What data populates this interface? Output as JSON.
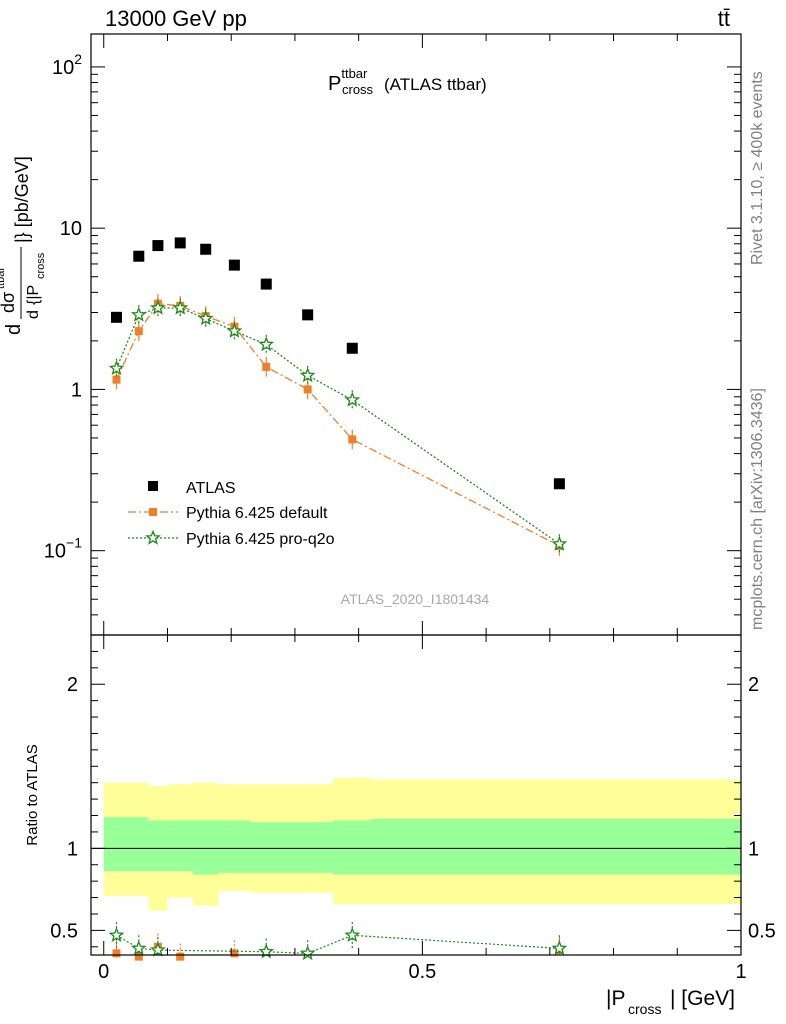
{
  "header": {
    "left": "13000 GeV pp",
    "right": "tt̄"
  },
  "side_labels": {
    "rivet": "Rivet 3.1.10, ≥ 400k events",
    "mcplots": "mcplots.cern.ch [arXiv:1306.3436]"
  },
  "chart_data": [
    {
      "type": "scatter",
      "title": "P",
      "title_sup": "ttbar",
      "title_sub": "cross",
      "title_suffix": "(ATLAS ttbar)",
      "watermark": "ATLAS_2020_I1801434",
      "ylabel": "dσ/d{|P_cross|} [pb/GeV]",
      "ylabel_parts": {
        "d1": "d",
        "dsigma": "dσ",
        "sigsup": "ttbar",
        "d2": "d",
        "brace": "{|P",
        "sub": "cross",
        "tail": "|} [pb/GeV]"
      },
      "yscale": "log",
      "ylim": [
        0.03,
        160
      ],
      "xlim": [
        -0.02,
        1.0
      ],
      "y_ticks": [
        {
          "value": 0.1,
          "base": "10",
          "exp": "−1"
        },
        {
          "value": 1,
          "base": "1",
          "exp": ""
        },
        {
          "value": 10,
          "base": "10",
          "exp": ""
        },
        {
          "value": 100,
          "base": "10",
          "exp": "2"
        }
      ],
      "legend_position": "lower-left",
      "series": [
        {
          "name": "ATLAS",
          "color": "#000000",
          "marker": "square",
          "x": [
            0.02,
            0.055,
            0.085,
            0.12,
            0.16,
            0.205,
            0.255,
            0.32,
            0.39,
            0.715
          ],
          "y": [
            2.8,
            6.7,
            7.8,
            8.1,
            7.4,
            5.9,
            4.5,
            2.9,
            1.8,
            0.26
          ]
        },
        {
          "name": "Pythia 6.425 default",
          "color": "#f07f2a",
          "marker": "filled-square",
          "line": "dashdot",
          "x": [
            0.02,
            0.055,
            0.085,
            0.12,
            0.16,
            0.205,
            0.255,
            0.32,
            0.39,
            0.715
          ],
          "y": [
            1.15,
            2.3,
            3.4,
            3.3,
            2.85,
            2.45,
            1.38,
            1.0,
            0.49,
            0.107
          ]
        },
        {
          "name": "Pythia 6.425 pro-q2o",
          "color": "#1b8a1b",
          "marker": "star",
          "line": "dotted",
          "x": [
            0.02,
            0.055,
            0.085,
            0.12,
            0.16,
            0.205,
            0.255,
            0.32,
            0.39,
            0.715
          ],
          "y": [
            1.35,
            2.9,
            3.2,
            3.2,
            2.75,
            2.3,
            1.9,
            1.22,
            0.86,
            0.11
          ]
        }
      ]
    },
    {
      "type": "scatter",
      "ylabel": "Ratio to ATLAS",
      "xlabel": "|P_cross| [GeV]",
      "xlabel_parts": {
        "pre": "|P",
        "sub": "cross",
        "post": "| [GeV]"
      },
      "xlim": [
        -0.02,
        1.0
      ],
      "ylim": [
        0.35,
        2.3
      ],
      "y_ticks": [
        0.5,
        1,
        2
      ],
      "x_ticks": [
        0,
        0.5,
        1
      ],
      "band_edges": [
        0.0,
        0.04,
        0.07,
        0.1,
        0.14,
        0.18,
        0.23,
        0.28,
        0.36,
        0.42,
        1.0
      ],
      "band_inner_hi": [
        1.19,
        1.19,
        1.17,
        1.17,
        1.17,
        1.17,
        1.16,
        1.16,
        1.17,
        1.18,
        1.16
      ],
      "band_inner_lo": [
        0.86,
        0.86,
        0.86,
        0.86,
        0.84,
        0.85,
        0.85,
        0.85,
        0.84,
        0.84,
        0.84
      ],
      "band_outer_hi": [
        1.4,
        1.4,
        1.38,
        1.39,
        1.4,
        1.39,
        1.39,
        1.39,
        1.43,
        1.42,
        1.42
      ],
      "band_outer_lo": [
        0.71,
        0.71,
        0.62,
        0.7,
        0.65,
        0.74,
        0.73,
        0.73,
        0.66,
        0.66,
        0.66
      ],
      "series": [
        {
          "name": "Pythia 6.425 default",
          "color": "#f07f2a",
          "x": [
            0.02,
            0.055,
            0.085,
            0.12,
            0.205,
            0.715
          ],
          "y": [
            0.36,
            0.34,
            0.4,
            0.34,
            0.36,
            0.38
          ]
        },
        {
          "name": "Pythia 6.425 pro-q2o",
          "color": "#1b8a1b",
          "x": [
            0.02,
            0.055,
            0.085,
            0.255,
            0.32,
            0.39,
            0.715
          ],
          "y": [
            0.47,
            0.39,
            0.38,
            0.37,
            0.36,
            0.47,
            0.39
          ]
        }
      ]
    }
  ]
}
